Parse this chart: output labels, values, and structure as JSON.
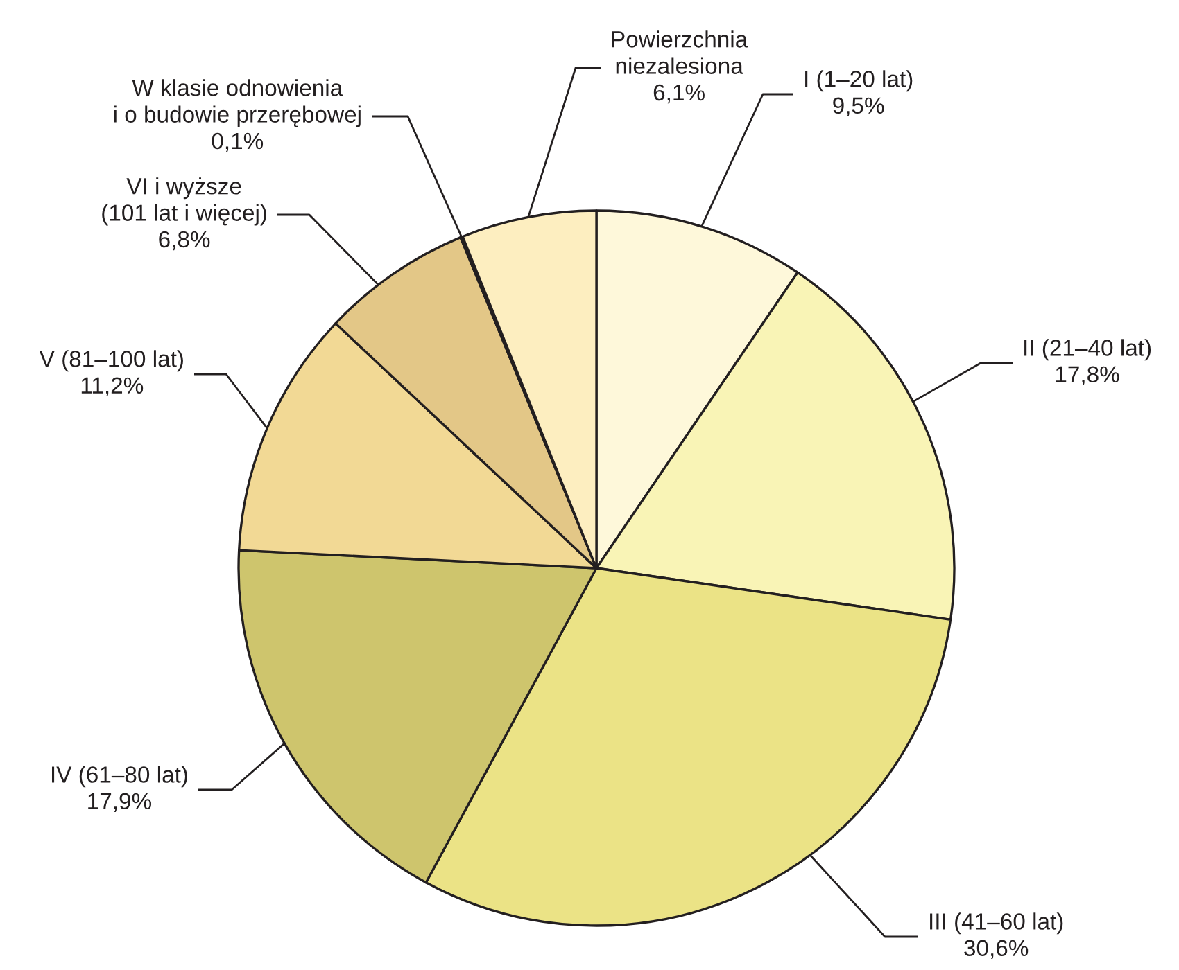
{
  "chart_data": {
    "type": "pie",
    "categories": [
      "I (1–20 lat)",
      "II (21–40 lat)",
      "III (41–60 lat)",
      "IV (61–80 lat)",
      "V (81–100 lat)",
      "VI i wyższe\n(101 lat i więcej)",
      "W klasie odnowienia\ni o budowie przerębowej",
      "Powierzchnia\nniezalesiona"
    ],
    "values": [
      9.5,
      17.8,
      30.6,
      17.9,
      11.2,
      6.8,
      0.1,
      6.1
    ],
    "colors": [
      "#fef8da",
      "#f9f4b6",
      "#ebe386",
      "#cec56d",
      "#f2d995",
      "#e3c787",
      "#c9a86e",
      "#fdeec0"
    ],
    "value_labels": [
      "9,5%",
      "17,8%",
      "30,6%",
      "17,9%",
      "11,2%",
      "6,8%",
      "0,1%",
      "6,1%"
    ]
  }
}
